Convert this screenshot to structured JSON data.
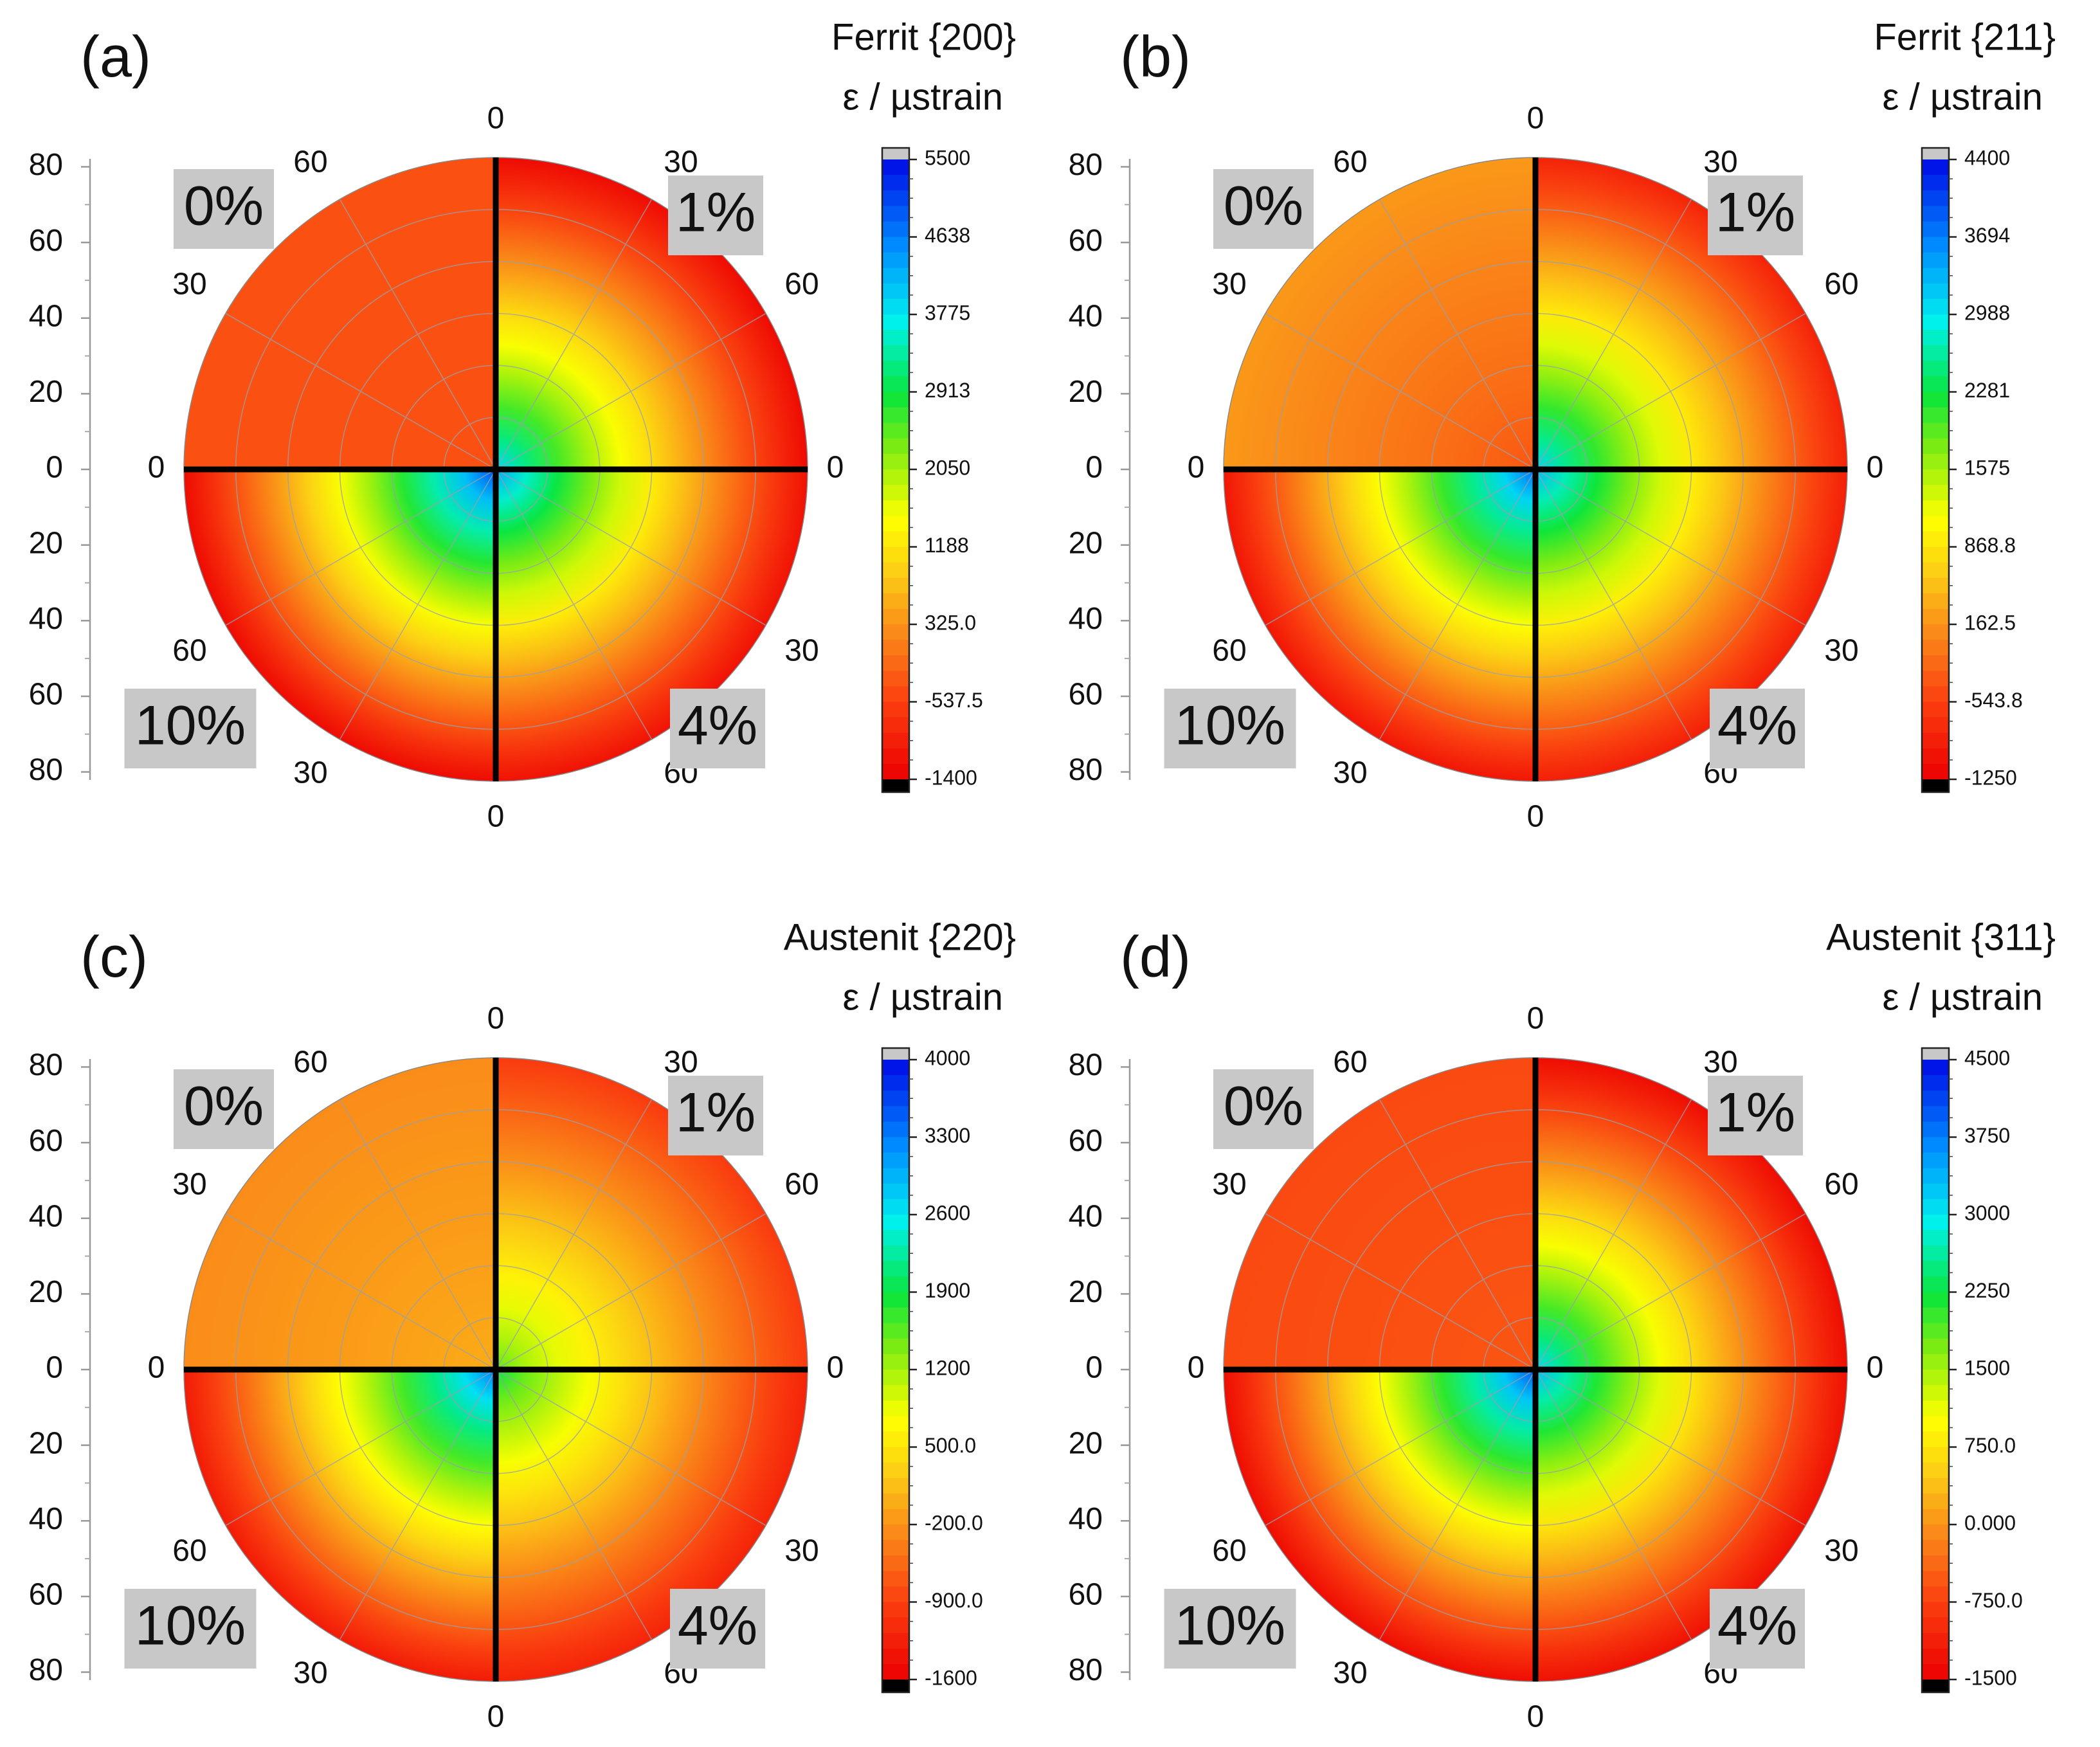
{
  "figure": {
    "panels_count": 4
  },
  "chart_data": [
    {
      "type": "heatmap",
      "panel_label": "(a)",
      "title": "Ferrit {200}",
      "colorbar_label": "ε / µstrain",
      "colorbar_ticks": [
        "5500",
        "4638",
        "3775",
        "2913",
        "2050",
        "1188",
        "325.0",
        "-537.5",
        "-1400"
      ],
      "colorbar_range": [
        -1400,
        5500
      ],
      "quadrants": [
        {
          "label": "0%",
          "position": "top-left",
          "center_value": -350,
          "edge_value": -350
        },
        {
          "label": "1%",
          "position": "top-right",
          "center_value": 3900,
          "edge_value": -1250
        },
        {
          "label": "10%",
          "position": "bottom-left",
          "center_value": 5000,
          "edge_value": -1250
        },
        {
          "label": "4%",
          "position": "bottom-right",
          "center_value": 4300,
          "edge_value": -1150
        }
      ],
      "radial_axis_ticks": [
        "80",
        "60",
        "40",
        "20",
        "0",
        "20",
        "40",
        "60",
        "80"
      ],
      "azimuth_labels": {
        "top": "0",
        "bottom": "0",
        "left": "0",
        "right": "0",
        "top_left": "60",
        "top_right": "30",
        "upper_left": "30",
        "upper_right": "60",
        "lower_left": "60",
        "lower_right": "30",
        "bottom_left": "30",
        "bottom_right": "60"
      }
    },
    {
      "type": "heatmap",
      "panel_label": "(b)",
      "title": "Ferrit {211}",
      "colorbar_label": "ε / µstrain",
      "colorbar_ticks": [
        "4400",
        "3694",
        "2988",
        "2281",
        "1575",
        "868.8",
        "162.5",
        "-543.8",
        "-1250"
      ],
      "colorbar_range": [
        -1250,
        4400
      ],
      "quadrants": [
        {
          "label": "0%",
          "position": "top-left",
          "center_value": -350,
          "edge_value": 200
        },
        {
          "label": "1%",
          "position": "top-right",
          "center_value": 3100,
          "edge_value": -850
        },
        {
          "label": "10%",
          "position": "bottom-left",
          "center_value": 3800,
          "edge_value": -1000
        },
        {
          "label": "4%",
          "position": "bottom-right",
          "center_value": 3300,
          "edge_value": -900
        }
      ],
      "radial_axis_ticks": [
        "80",
        "60",
        "40",
        "20",
        "0",
        "20",
        "40",
        "60",
        "80"
      ],
      "azimuth_labels": {
        "top": "0",
        "bottom": "0",
        "left": "0",
        "right": "0",
        "top_left": "60",
        "top_right": "30",
        "upper_left": "30",
        "upper_right": "60",
        "lower_left": "60",
        "lower_right": "30",
        "bottom_left": "30",
        "bottom_right": "60"
      }
    },
    {
      "type": "heatmap",
      "panel_label": "(c)",
      "title": "Austenit {220}",
      "colorbar_label": "ε / µstrain",
      "colorbar_ticks": [
        "4000",
        "3300",
        "2600",
        "1900",
        "1200",
        "500.0",
        "-200.0",
        "-900.0",
        "-1600"
      ],
      "colorbar_range": [
        -1600,
        4000
      ],
      "quadrants": [
        {
          "label": "0%",
          "position": "top-left",
          "center_value": 0,
          "edge_value": -250
        },
        {
          "label": "1%",
          "position": "top-right",
          "center_value": 1500,
          "edge_value": -950
        },
        {
          "label": "10%",
          "position": "bottom-left",
          "center_value": 3300,
          "edge_value": -1300
        },
        {
          "label": "4%",
          "position": "bottom-right",
          "center_value": 1900,
          "edge_value": -1200
        }
      ],
      "radial_axis_ticks": [
        "80",
        "60",
        "40",
        "20",
        "0",
        "20",
        "40",
        "60",
        "80"
      ],
      "azimuth_labels": {
        "top": "0",
        "bottom": "0",
        "left": "0",
        "right": "0",
        "top_left": "60",
        "top_right": "30",
        "upper_left": "30",
        "upper_right": "60",
        "lower_left": "60",
        "lower_right": "30",
        "bottom_left": "30",
        "bottom_right": "60"
      }
    },
    {
      "type": "heatmap",
      "panel_label": "(d)",
      "title": "Austenit {311}",
      "colorbar_label": "ε / µstrain",
      "colorbar_ticks": [
        "4500",
        "3750",
        "3000",
        "2250",
        "1500",
        "750.0",
        "0.000",
        "-750.0",
        "-1500"
      ],
      "colorbar_range": [
        -1500,
        4500
      ],
      "quadrants": [
        {
          "label": "0%",
          "position": "top-left",
          "center_value": -550,
          "edge_value": -650
        },
        {
          "label": "1%",
          "position": "top-right",
          "center_value": 3100,
          "edge_value": -1350
        },
        {
          "label": "10%",
          "position": "bottom-left",
          "center_value": 4000,
          "edge_value": -1350
        },
        {
          "label": "4%",
          "position": "bottom-right",
          "center_value": 3300,
          "edge_value": -1300
        }
      ],
      "radial_axis_ticks": [
        "80",
        "60",
        "40",
        "20",
        "0",
        "20",
        "40",
        "60",
        "80"
      ],
      "azimuth_labels": {
        "top": "0",
        "bottom": "0",
        "left": "0",
        "right": "0",
        "top_left": "60",
        "top_right": "30",
        "upper_left": "30",
        "upper_right": "60",
        "lower_left": "60",
        "lower_right": "30",
        "bottom_left": "30",
        "bottom_right": "60"
      }
    }
  ]
}
